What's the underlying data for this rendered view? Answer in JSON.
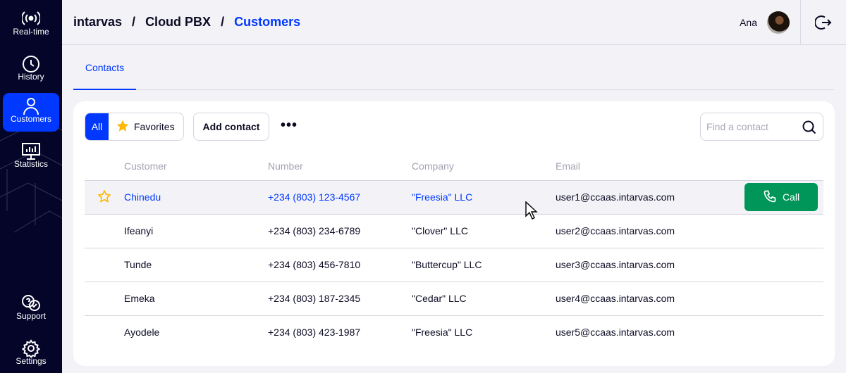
{
  "sidebar": {
    "items": [
      {
        "label": "Real-time",
        "icon": "broadcast-icon"
      },
      {
        "label": "History",
        "icon": "clock-icon"
      },
      {
        "label": "Customers",
        "icon": "user-icon",
        "active": true
      },
      {
        "label": "Statistics",
        "icon": "chart-monitor-icon"
      },
      {
        "label": "Support",
        "icon": "support-chat-icon"
      },
      {
        "label": "Settings",
        "icon": "gear-icon"
      }
    ]
  },
  "header": {
    "breadcrumb": [
      "intarvas",
      "Cloud PBX",
      "Customers"
    ],
    "separator": "/",
    "user_name": "Ana"
  },
  "tabs": [
    {
      "label": "Contacts",
      "active": true
    }
  ],
  "toolbar": {
    "all_label": "All",
    "favorites_label": "Favorites",
    "add_contact_label": "Add contact",
    "more_label": "•••",
    "search_placeholder": "Find a contact",
    "search_value": ""
  },
  "table": {
    "columns": [
      "Customer",
      "Number",
      "Company",
      "Email"
    ],
    "rows": [
      {
        "customer": "Chinedu",
        "number": "+234 (803) 123-4567",
        "company": "\"Freesia\" LLC",
        "email": "user1@ccaas.intarvas.com",
        "hovered": true
      },
      {
        "customer": "Ifeanyi",
        "number": "+234 (803) 234-6789",
        "company": "\"Clover\" LLC",
        "email": "user2@ccaas.intarvas.com"
      },
      {
        "customer": "Tunde",
        "number": "+234 (803) 456-7810",
        "company": "\"Buttercup\" LLC",
        "email": "user3@ccaas.intarvas.com"
      },
      {
        "customer": "Emeka",
        "number": "+234 (803) 187-2345",
        "company": "\"Cedar\" LLC",
        "email": "user4@ccaas.intarvas.com"
      },
      {
        "customer": "Ayodele",
        "number": "+234 (803) 423-1987",
        "company": "\"Freesia\" LLC",
        "email": "user5@ccaas.intarvas.com"
      }
    ],
    "call_label": "Call"
  },
  "colors": {
    "sidebar": "#05052a",
    "accent": "#0038ff",
    "call": "#00965a",
    "star": "#ffb800",
    "background": "#f3f3f7"
  }
}
